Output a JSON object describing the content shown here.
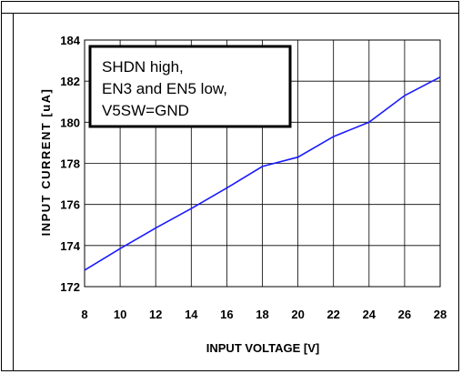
{
  "chart_data": {
    "type": "line",
    "title": "",
    "xlabel": "INPUT VOLTAGE [V]",
    "ylabel": "INPUT CURRENT [uA]",
    "xlim": [
      8,
      28
    ],
    "ylim": [
      172,
      184
    ],
    "x_ticks": [
      8,
      10,
      12,
      14,
      16,
      18,
      20,
      22,
      24,
      26,
      28
    ],
    "y_ticks": [
      172,
      174,
      176,
      178,
      180,
      182,
      184
    ],
    "grid": true,
    "series": [
      {
        "color": "#1a1aff",
        "x": [
          8,
          10,
          12,
          14,
          16,
          18,
          20,
          22,
          24,
          26,
          28
        ],
        "y": [
          172.8,
          173.85,
          174.85,
          175.8,
          176.8,
          177.85,
          178.3,
          179.3,
          180.0,
          181.3,
          182.2
        ]
      }
    ],
    "annotation": {
      "lines": [
        "SHDN high,",
        "EN3 and EN5 low,",
        "V5SW=GND"
      ]
    }
  }
}
